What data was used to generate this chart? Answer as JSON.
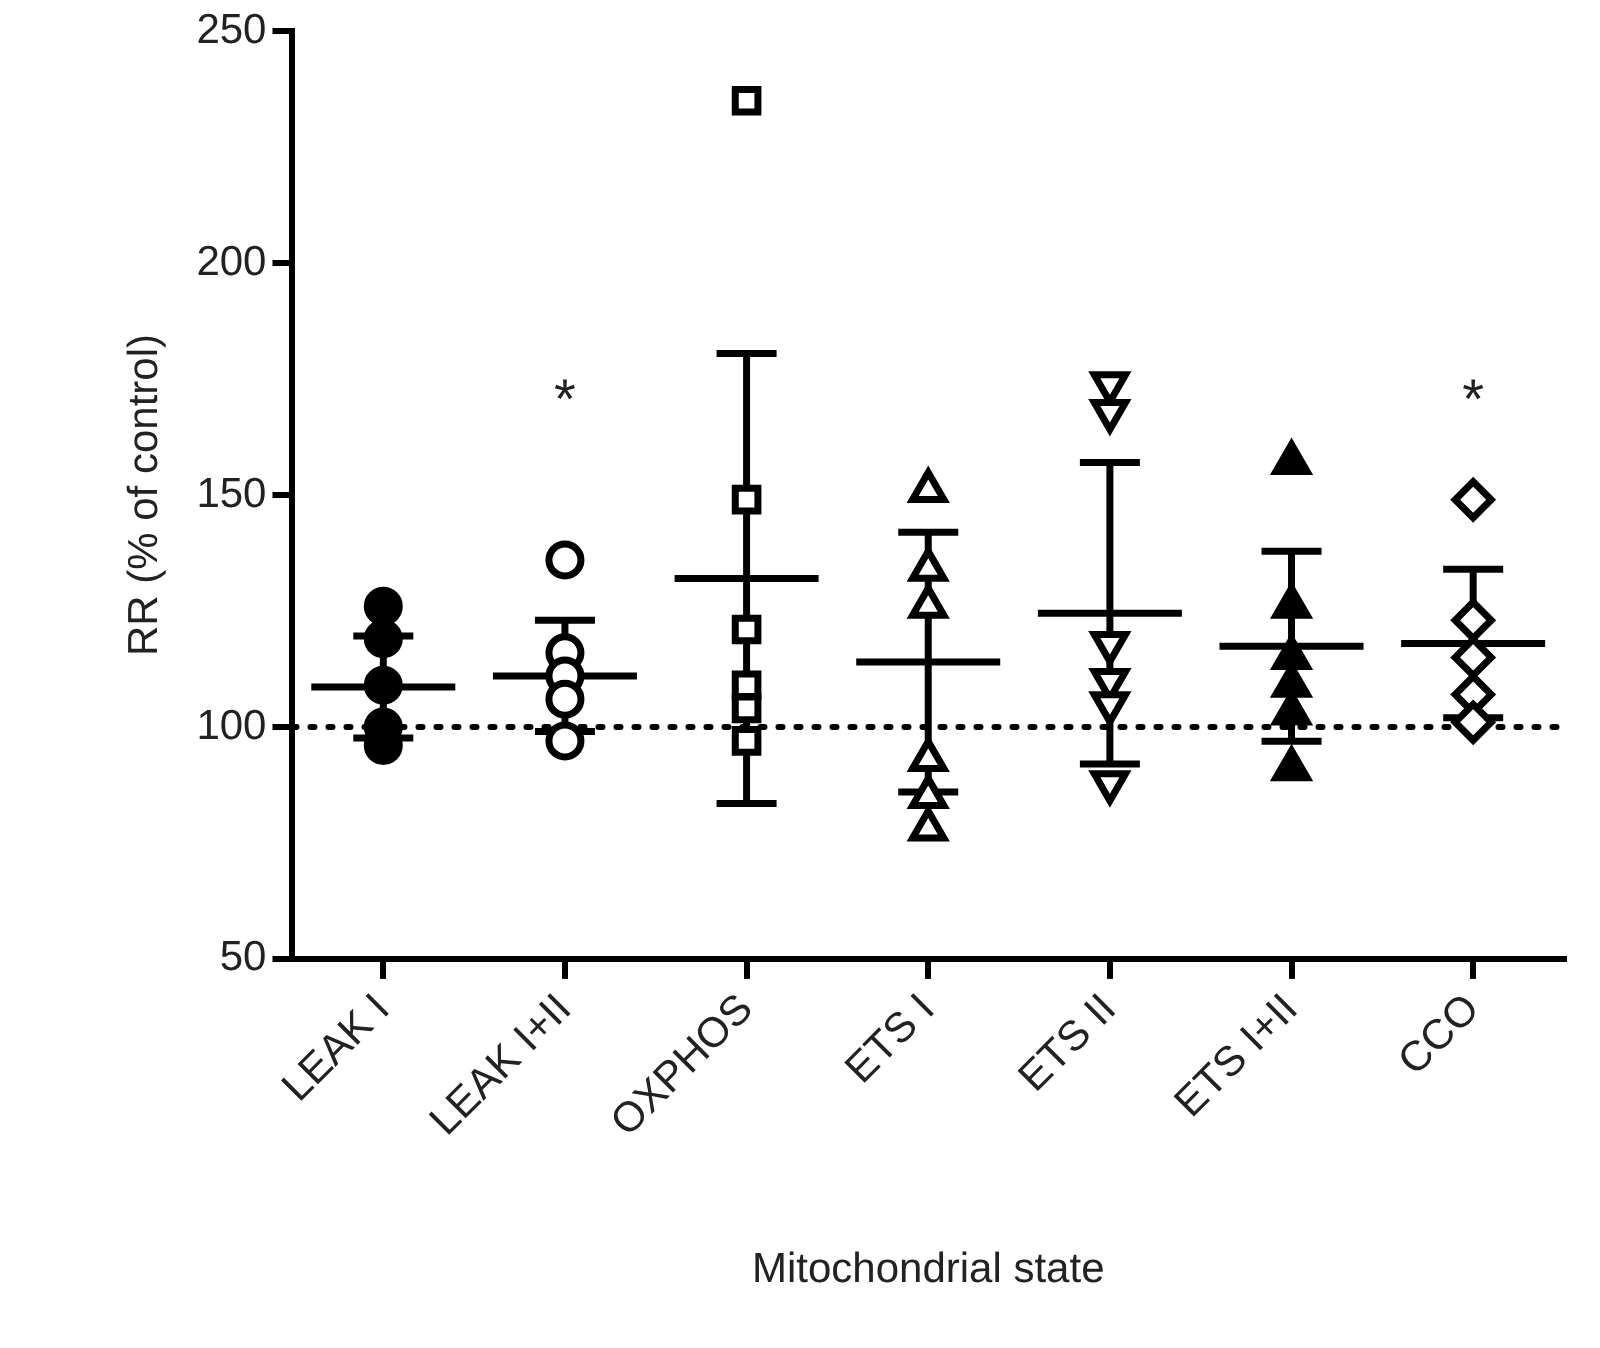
{
  "chart_data": {
    "type": "scatter",
    "xlabel": "Mitochondrial state",
    "ylabel": "RR (% of control)",
    "categories": [
      "LEAK I",
      "LEAK I+II",
      "OXPHOS",
      "ETS I",
      "ETS II",
      "ETS I+II",
      "CCO"
    ],
    "ylim": [
      50,
      250
    ],
    "yticks": [
      50,
      100,
      150,
      200,
      250
    ],
    "grid": false,
    "legend": false,
    "series": [
      {
        "color": "#000000",
        "marker": "circle",
        "x": [
          "LEAK I",
          "LEAK I",
          "LEAK I",
          "LEAK I",
          "LEAK I"
        ],
        "values": [
          126,
          119,
          109,
          100,
          96
        ]
      },
      {
        "color": "#ffffff",
        "marker": "circle",
        "x": [
          "LEAK I+II",
          "LEAK I+II",
          "LEAK I+II",
          "LEAK I+II",
          "LEAK I+II"
        ],
        "values": [
          136,
          116,
          111,
          106,
          97
        ]
      },
      {
        "color": "#ffffff",
        "marker": "square",
        "x": [
          "OXPHOS",
          "OXPHOS",
          "OXPHOS",
          "OXPHOS",
          "OXPHOS",
          "OXPHOS"
        ],
        "values": [
          235,
          149,
          121,
          109,
          104,
          97
        ]
      },
      {
        "color": "#ffffff",
        "marker": "triangle",
        "x": [
          "ETS I",
          "ETS I",
          "ETS I",
          "ETS I",
          "ETS I",
          "ETS I"
        ],
        "values": [
          151,
          134,
          126,
          93,
          85,
          78
        ]
      },
      {
        "color": "#ffffff",
        "marker": "triangle-down",
        "x": [
          "ETS II",
          "ETS II",
          "ETS II",
          "ETS II",
          "ETS II",
          "ETS II"
        ],
        "values": [
          174,
          168,
          118,
          110,
          105,
          88
        ]
      },
      {
        "color": "#000000",
        "marker": "triangle",
        "x": [
          "ETS I+II",
          "ETS I+II",
          "ETS I+II",
          "ETS I+II",
          "ETS I+II",
          "ETS I+II"
        ],
        "values": [
          157,
          126,
          115,
          109,
          103,
          91
        ]
      },
      {
        "color": "#ffffff",
        "marker": "diamond",
        "x": [
          "CCO",
          "CCO",
          "CCO",
          "CCO",
          "CCO"
        ],
        "values": [
          149,
          123,
          115,
          107,
          101
        ]
      },
      {
        "type": "box",
        "color": "#000000",
        "boxes": [
          {
            "low": 97.6,
            "q1": 108.6,
            "median": 108.6,
            "q3": 108.6,
            "high": 119.6
          },
          {
            "low": 99,
            "q1": 111,
            "median": 111,
            "q3": 111,
            "high": 123
          },
          {
            "low": 83.5,
            "q1": 132,
            "median": 132,
            "q3": 132,
            "high": 180.5
          },
          {
            "low": 86,
            "q1": 114,
            "median": 114,
            "q3": 114,
            "high": 142
          },
          {
            "low": 92,
            "q1": 124.5,
            "median": 124.5,
            "q3": 124.5,
            "high": 157
          },
          {
            "low": 96.9,
            "q1": 117.4,
            "median": 117.4,
            "q3": 117.4,
            "high": 137.9
          },
          {
            "low": 102,
            "q1": 118,
            "median": 118,
            "q3": 118,
            "high": 134
          }
        ]
      }
    ],
    "ref_lines": [
      {
        "axis": "y",
        "value": 100,
        "line_style": "dotted",
        "color": "#000000"
      }
    ],
    "annotations": [
      "*",
      "*"
    ]
  }
}
